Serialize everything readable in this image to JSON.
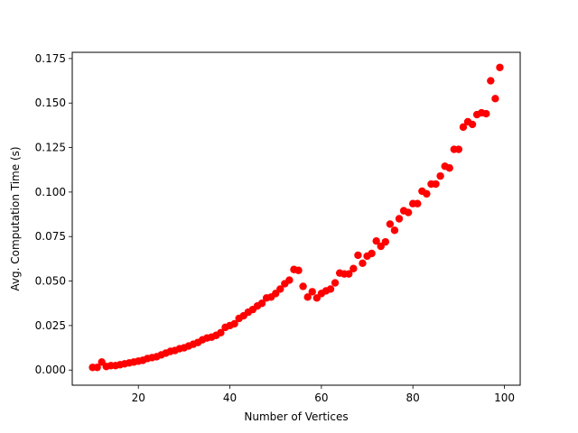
{
  "chart_data": {
    "type": "scatter",
    "title": "",
    "xlabel": "Number of Vertices",
    "ylabel": "Avg. Computation Time (s)",
    "xlim": [
      5.55,
      103.45
    ],
    "ylim": [
      -0.0085,
      0.1785
    ],
    "xticks": [
      20,
      40,
      60,
      80,
      100
    ],
    "xtick_labels": [
      "20",
      "40",
      "60",
      "80",
      "100"
    ],
    "yticks": [
      0.0,
      0.025,
      0.05,
      0.075,
      0.1,
      0.125,
      0.15,
      0.175
    ],
    "ytick_labels": [
      "0.000",
      "0.025",
      "0.050",
      "0.075",
      "0.100",
      "0.125",
      "0.150",
      "0.175"
    ],
    "grid": false,
    "marker_color": "#ff0000",
    "series": [
      {
        "x": [
          10,
          11,
          12,
          13,
          14,
          15,
          16,
          17,
          18,
          19,
          20,
          21,
          22,
          23,
          24,
          25,
          26,
          27,
          28,
          29,
          30,
          31,
          32,
          33,
          34,
          35,
          36,
          37,
          38,
          39,
          40,
          41,
          42,
          43,
          44,
          45,
          46,
          47,
          48,
          49,
          50,
          51,
          52,
          53,
          54,
          55,
          56,
          57,
          58,
          59,
          60,
          61,
          62,
          63,
          64,
          65,
          66,
          67,
          68,
          69,
          70,
          71,
          72,
          73,
          74,
          75,
          76,
          77,
          78,
          79,
          80,
          81,
          82,
          83,
          84,
          85,
          86,
          87,
          88,
          89,
          90,
          91,
          92,
          93,
          94,
          95,
          96,
          97,
          98,
          99
        ],
        "y": [
          0.0015,
          0.0015,
          0.0045,
          0.002,
          0.0025,
          0.0025,
          0.003,
          0.0035,
          0.004,
          0.0045,
          0.005,
          0.0055,
          0.0065,
          0.007,
          0.0075,
          0.0085,
          0.0095,
          0.0105,
          0.011,
          0.012,
          0.0125,
          0.0135,
          0.0145,
          0.0155,
          0.017,
          0.018,
          0.0185,
          0.0195,
          0.021,
          0.024,
          0.025,
          0.026,
          0.029,
          0.0305,
          0.0325,
          0.034,
          0.036,
          0.0375,
          0.0405,
          0.041,
          0.043,
          0.0455,
          0.0485,
          0.0505,
          0.0565,
          0.056,
          0.047,
          0.041,
          0.044,
          0.0405,
          0.043,
          0.0445,
          0.0455,
          0.049,
          0.0545,
          0.054,
          0.054,
          0.057,
          0.0645,
          0.06,
          0.064,
          0.0655,
          0.0725,
          0.0695,
          0.072,
          0.082,
          0.0785,
          0.085,
          0.0895,
          0.0885,
          0.0935,
          0.0935,
          0.1005,
          0.099,
          0.1045,
          0.1045,
          0.109,
          0.1145,
          0.1135,
          0.124,
          0.124,
          0.1365,
          0.1395,
          0.138,
          0.1435,
          0.1445,
          0.144,
          0.1625,
          0.1525,
          0.17
        ]
      }
    ]
  }
}
